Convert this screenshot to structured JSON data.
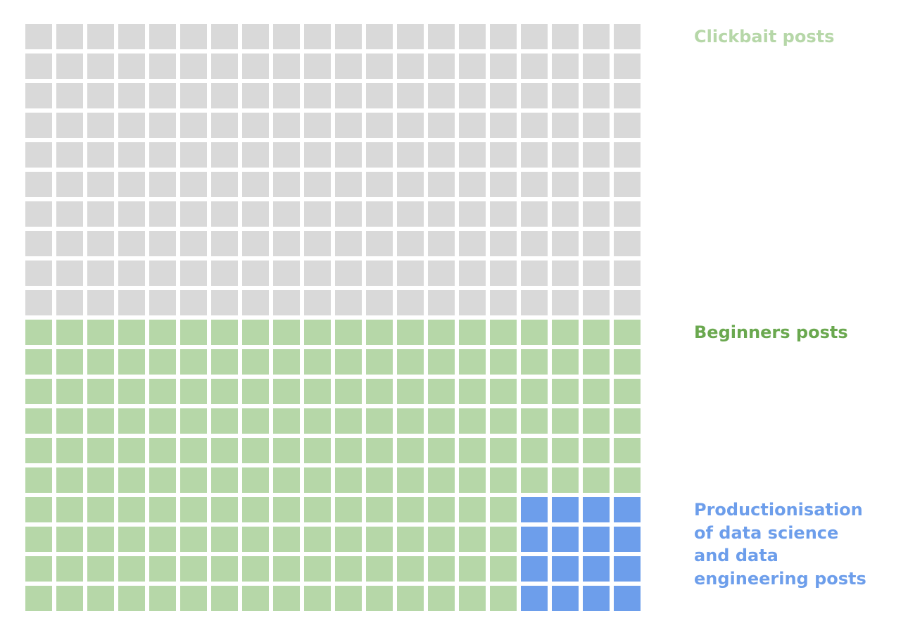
{
  "chart_data": {
    "type": "waffle",
    "title": "",
    "rows": 20,
    "columns": 20,
    "cell_color_default": "#d9d9d9",
    "categories": [
      {
        "name": "Clickbait posts",
        "lines": [
          "Clickbait posts"
        ],
        "label_color": "#b6d7a8",
        "cell_color": "#d9d9d9",
        "cells": 200
      },
      {
        "name": "Beginners posts",
        "lines": [
          "Beginners posts"
        ],
        "label_color": "#6aa84f",
        "cell_color": "#b6d7a8",
        "cells": 184
      },
      {
        "name": "Productionisation of data science and data engineering posts",
        "lines": [
          "Productionisation",
          "of data science",
          "and data",
          "engineering posts"
        ],
        "label_color": "#6d9eeb",
        "cell_color": "#6d9eeb",
        "cells": 16
      }
    ],
    "fill_order": "top rows grey (rows 1-10), green region rows 11-20, blue block in bottom-right 4 columns x 4 rows (rows 17-20, columns 17-20)",
    "blue_block": {
      "row_start": 17,
      "row_end": 20,
      "col_start": 17,
      "col_end": 20
    },
    "green_row_start": 11
  }
}
